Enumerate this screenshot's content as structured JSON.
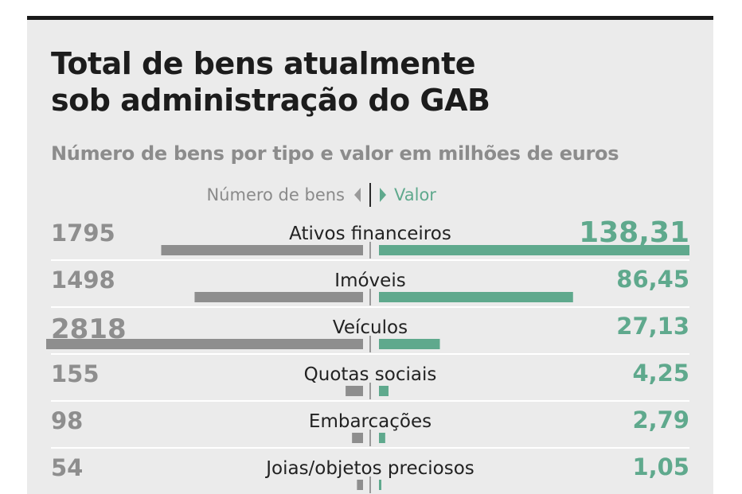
{
  "title_line1": "Total de bens atualmente",
  "title_line2": "sob administração do GAB",
  "subtitle": "Número de bens por tipo e valor em milhões de euros",
  "colors": {
    "count_bar": "#8e8e8e",
    "value_bar": "#5fa98d",
    "count_text": "#8e8e8e",
    "value_text": "#5fa98d",
    "divider": "#ffffff"
  },
  "chart_data": {
    "type": "bar",
    "layout": "butterfly",
    "left_header": "Número de bens",
    "right_header": "Valor",
    "categories": [
      "Ativos financeiros",
      "Imóveis",
      "Veículos",
      "Quotas sociais",
      "Embarcações",
      "Joias/objetos preciosos"
    ],
    "count_labels": [
      "1795",
      "1498",
      "2818",
      "155",
      "98",
      "54"
    ],
    "value_labels": [
      "138,31",
      "86,45",
      "27,13",
      "4,25",
      "2,79",
      "1,05"
    ],
    "series": [
      {
        "name": "Número de bens",
        "values": [
          1795,
          1498,
          2818,
          155,
          98,
          54
        ]
      },
      {
        "name": "Valor",
        "values": [
          138.31,
          86.45,
          27.13,
          4.25,
          2.79,
          1.05
        ]
      }
    ]
  }
}
